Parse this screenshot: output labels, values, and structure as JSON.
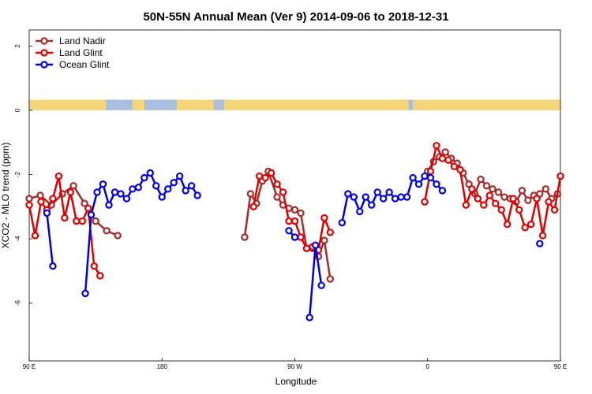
{
  "chart_data": {
    "type": "line",
    "title": "50N-55N Annual Mean (Ver 9)   2014-09-06 to 2018-12-31",
    "xlabel": "Longitude",
    "ylabel": "XCO2 - MLO trend (ppm)",
    "xlim": [
      90,
      450
    ],
    "ylim": [
      -7.8,
      2.5
    ],
    "x_ticks": [
      {
        "value": 90,
        "label": "90 E"
      },
      {
        "value": 180,
        "label": "180"
      },
      {
        "value": 270,
        "label": "90 W"
      },
      {
        "value": 360,
        "label": "0"
      },
      {
        "value": 450,
        "label": "90 E"
      },
      {
        "value": 540,
        "label": "180"
      }
    ],
    "y_ticks": [
      {
        "value": 2,
        "label": "2"
      },
      {
        "value": 0,
        "label": "0"
      },
      {
        "value": -2,
        "label": "-2"
      },
      {
        "value": -4,
        "label": "-4"
      },
      {
        "value": -6,
        "label": "-6"
      }
    ],
    "grid": false,
    "legend_position": "top-left",
    "land_mask_strip": {
      "y_range": [
        0,
        0.33
      ],
      "land_color": "#f5d57a",
      "ocean_color": "#a9bfe0"
    },
    "series": [
      {
        "name": "Land Nadir",
        "color": "#a52a2a",
        "segments": [
          [
            [
              90,
              -2.75
            ],
            [
              97.5,
              -2.65
            ],
            [
              105,
              -2.95
            ],
            [
              112.5,
              -2.6
            ],
            [
              120,
              -2.35
            ],
            [
              127.5,
              -2.9
            ],
            [
              135,
              -3.45
            ],
            [
              142.5,
              -3.75
            ],
            [
              150,
              -3.9
            ]
          ],
          [
            [
              236,
              -3.95
            ],
            [
              240,
              -2.6
            ],
            [
              244,
              -2.9
            ],
            [
              248,
              -2.2
            ],
            [
              252,
              -1.9
            ],
            [
              258,
              -2.7
            ],
            [
              262,
              -2.95
            ],
            [
              266,
              -3.05
            ],
            [
              270,
              -3.1
            ],
            [
              274,
              -3.2
            ],
            [
              278,
              -4.3
            ],
            [
              282,
              -4.3
            ],
            [
              286,
              -4.55
            ],
            [
              290,
              -4.05
            ],
            [
              294,
              -5.25
            ]
          ],
          [
            [
              360,
              -1.9
            ],
            [
              364,
              -1.6
            ],
            [
              368,
              -1.45
            ],
            [
              372,
              -1.3
            ],
            [
              376,
              -1.5
            ],
            [
              380,
              -1.65
            ],
            [
              384,
              -1.95
            ],
            [
              388,
              -2.3
            ],
            [
              392,
              -2.6
            ],
            [
              396,
              -2.15
            ],
            [
              400,
              -2.35
            ],
            [
              404,
              -2.45
            ],
            [
              408,
              -2.55
            ],
            [
              412,
              -2.7
            ],
            [
              416,
              -2.75
            ],
            [
              420,
              -2.85
            ],
            [
              424,
              -2.5
            ],
            [
              428,
              -2.8
            ],
            [
              432,
              -2.65
            ],
            [
              436,
              -2.6
            ],
            [
              440,
              -2.45
            ],
            [
              444,
              -2.75
            ],
            [
              448,
              -2.6
            ],
            [
              452,
              -2.9
            ],
            [
              456,
              -3.9
            ]
          ]
        ]
      },
      {
        "name": "Land Glint",
        "color": "#e00000",
        "segments": [
          [
            [
              90,
              -2.95
            ],
            [
              94,
              -3.9
            ],
            [
              98,
              -2.85
            ],
            [
              102,
              -3.1
            ],
            [
              106,
              -2.75
            ],
            [
              110,
              -2.05
            ],
            [
              114,
              -3.35
            ],
            [
              118,
              -2.55
            ],
            [
              122,
              -3.45
            ],
            [
              126,
              -3.45
            ],
            [
              130,
              -3.05
            ],
            [
              134,
              -4.85
            ],
            [
              138,
              -5.15
            ]
          ],
          [
            [
              242,
              -3.0
            ],
            [
              246,
              -2.05
            ],
            [
              250,
              -2.1
            ],
            [
              254,
              -1.95
            ],
            [
              258,
              -2.3
            ],
            [
              262,
              -2.55
            ],
            [
              266,
              -3.45
            ],
            [
              270,
              -3.45
            ],
            [
              274,
              -3.95
            ],
            [
              278,
              -4.3
            ],
            [
              282,
              -4.25
            ],
            [
              286,
              -4.35
            ],
            [
              290,
              -3.35
            ],
            [
              294,
              -3.8
            ]
          ],
          [
            [
              358,
              -2.85
            ],
            [
              362,
              -1.9
            ],
            [
              366,
              -1.1
            ],
            [
              370,
              -1.5
            ],
            [
              374,
              -1.55
            ],
            [
              378,
              -1.75
            ],
            [
              382,
              -1.85
            ],
            [
              386,
              -2.95
            ],
            [
              390,
              -2.45
            ],
            [
              394,
              -2.75
            ],
            [
              398,
              -2.95
            ],
            [
              402,
              -2.65
            ],
            [
              406,
              -2.9
            ],
            [
              410,
              -3.1
            ],
            [
              414,
              -3.55
            ],
            [
              418,
              -2.75
            ],
            [
              422,
              -3.1
            ],
            [
              426,
              -3.65
            ],
            [
              430,
              -3.55
            ],
            [
              434,
              -2.75
            ],
            [
              438,
              -3.9
            ],
            [
              442,
              -2.85
            ],
            [
              446,
              -3.1
            ],
            [
              450,
              -2.05
            ],
            [
              454,
              -3.35
            ],
            [
              458,
              -2.55
            ],
            [
              462,
              -3.45
            ],
            [
              466,
              -3.45
            ],
            [
              470,
              -3.05
            ],
            [
              474,
              -4.85
            ],
            [
              478,
              -5.15
            ]
          ]
        ]
      },
      {
        "name": "Ocean Glint",
        "color": "#0000e0",
        "segments": [
          [
            [
              102,
              -3.2
            ],
            [
              106,
              -4.85
            ]
          ],
          [
            [
              128,
              -5.7
            ],
            [
              132,
              -3.25
            ],
            [
              136,
              -2.55
            ],
            [
              140,
              -2.3
            ],
            [
              144,
              -2.95
            ],
            [
              148,
              -2.55
            ],
            [
              152,
              -2.6
            ],
            [
              156,
              -2.75
            ],
            [
              160,
              -2.45
            ],
            [
              164,
              -2.4
            ],
            [
              168,
              -2.1
            ],
            [
              172,
              -1.95
            ],
            [
              176,
              -2.35
            ],
            [
              180,
              -2.7
            ],
            [
              184,
              -2.45
            ],
            [
              188,
              -2.25
            ],
            [
              192,
              -2.05
            ],
            [
              196,
              -2.5
            ],
            [
              200,
              -2.35
            ],
            [
              204,
              -2.65
            ]
          ],
          [
            [
              266,
              -3.75
            ],
            [
              270,
              -3.95
            ]
          ],
          [
            [
              280,
              -6.45
            ],
            [
              284,
              -4.2
            ],
            [
              288,
              -5.45
            ]
          ],
          [
            [
              302,
              -3.5
            ],
            [
              306,
              -2.6
            ],
            [
              310,
              -2.7
            ],
            [
              314,
              -3.15
            ],
            [
              318,
              -2.7
            ],
            [
              322,
              -2.95
            ],
            [
              326,
              -2.55
            ],
            [
              330,
              -2.75
            ],
            [
              334,
              -2.55
            ],
            [
              338,
              -2.75
            ],
            [
              342,
              -2.7
            ],
            [
              346,
              -2.7
            ],
            [
              350,
              -2.1
            ],
            [
              354,
              -2.3
            ],
            [
              358,
              -2.05
            ],
            [
              362,
              -2.1
            ],
            [
              366,
              -2.3
            ],
            [
              370,
              -2.5
            ]
          ],
          [
            [
              436,
              -4.15
            ]
          ],
          [
            [
              474,
              -3.2
            ],
            [
              478,
              -4.85
            ]
          ],
          [
            [
              454,
              -5.7
            ],
            [
              458,
              -3.25
            ],
            [
              462,
              -2.55
            ],
            [
              466,
              -2.3
            ],
            [
              470,
              -2.95
            ],
            [
              474,
              -2.55
            ],
            [
              478,
              -2.6
            ],
            [
              482,
              -2.75
            ],
            [
              486,
              -2.45
            ]
          ]
        ]
      }
    ]
  }
}
